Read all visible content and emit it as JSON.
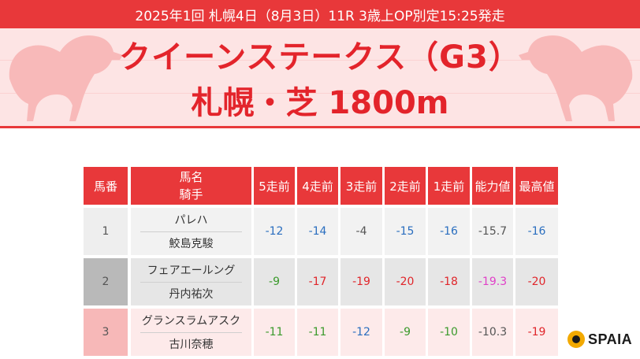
{
  "header": {
    "subtitle": "2025年1回 札幌4日（8月3日）11R 3歳上OP別定15:25発走",
    "race_name": "クイーンステークス（G3）",
    "course": "札幌・芝 1800m"
  },
  "table": {
    "headers": {
      "gate": "馬番",
      "name": "馬名",
      "jockey": "騎手",
      "r5": "5走前",
      "r4": "4走前",
      "r3": "3走前",
      "r2": "2走前",
      "r1": "1走前",
      "ability": "能力値",
      "best": "最高値"
    },
    "rows": [
      {
        "gate": "1",
        "name": "パレハ",
        "jockey": "鮫島克駿",
        "r5": "-12",
        "r4": "-14",
        "r3": "-4",
        "r2": "-15",
        "r1": "-16",
        "ability": "-15.7",
        "best": "-16"
      },
      {
        "gate": "2",
        "name": "フェアエールング",
        "jockey": "丹内祐次",
        "r5": "-9",
        "r4": "-17",
        "r3": "-19",
        "r2": "-20",
        "r1": "-18",
        "ability": "-19.3",
        "best": "-20"
      },
      {
        "gate": "3",
        "name": "グランスラムアスク",
        "jockey": "古川奈穂",
        "r5": "-11",
        "r4": "-11",
        "r3": "-12",
        "r2": "-9",
        "r1": "-10",
        "ability": "-10.3",
        "best": "-19"
      }
    ],
    "colors": {
      "header_red": "#e8383a",
      "gate1_bg": "#eeeeee",
      "gate2_bg": "#b9b9b9",
      "gate3_bg": "#f7b8b8",
      "value_blue": "#2a6ebf",
      "value_green": "#3b9a2c",
      "value_red": "#e0262b",
      "value_gray": "#555555",
      "value_pink": "#e040c8"
    }
  },
  "logo": {
    "text": "SPAIA",
    "icon": "spaia-logo-icon"
  }
}
